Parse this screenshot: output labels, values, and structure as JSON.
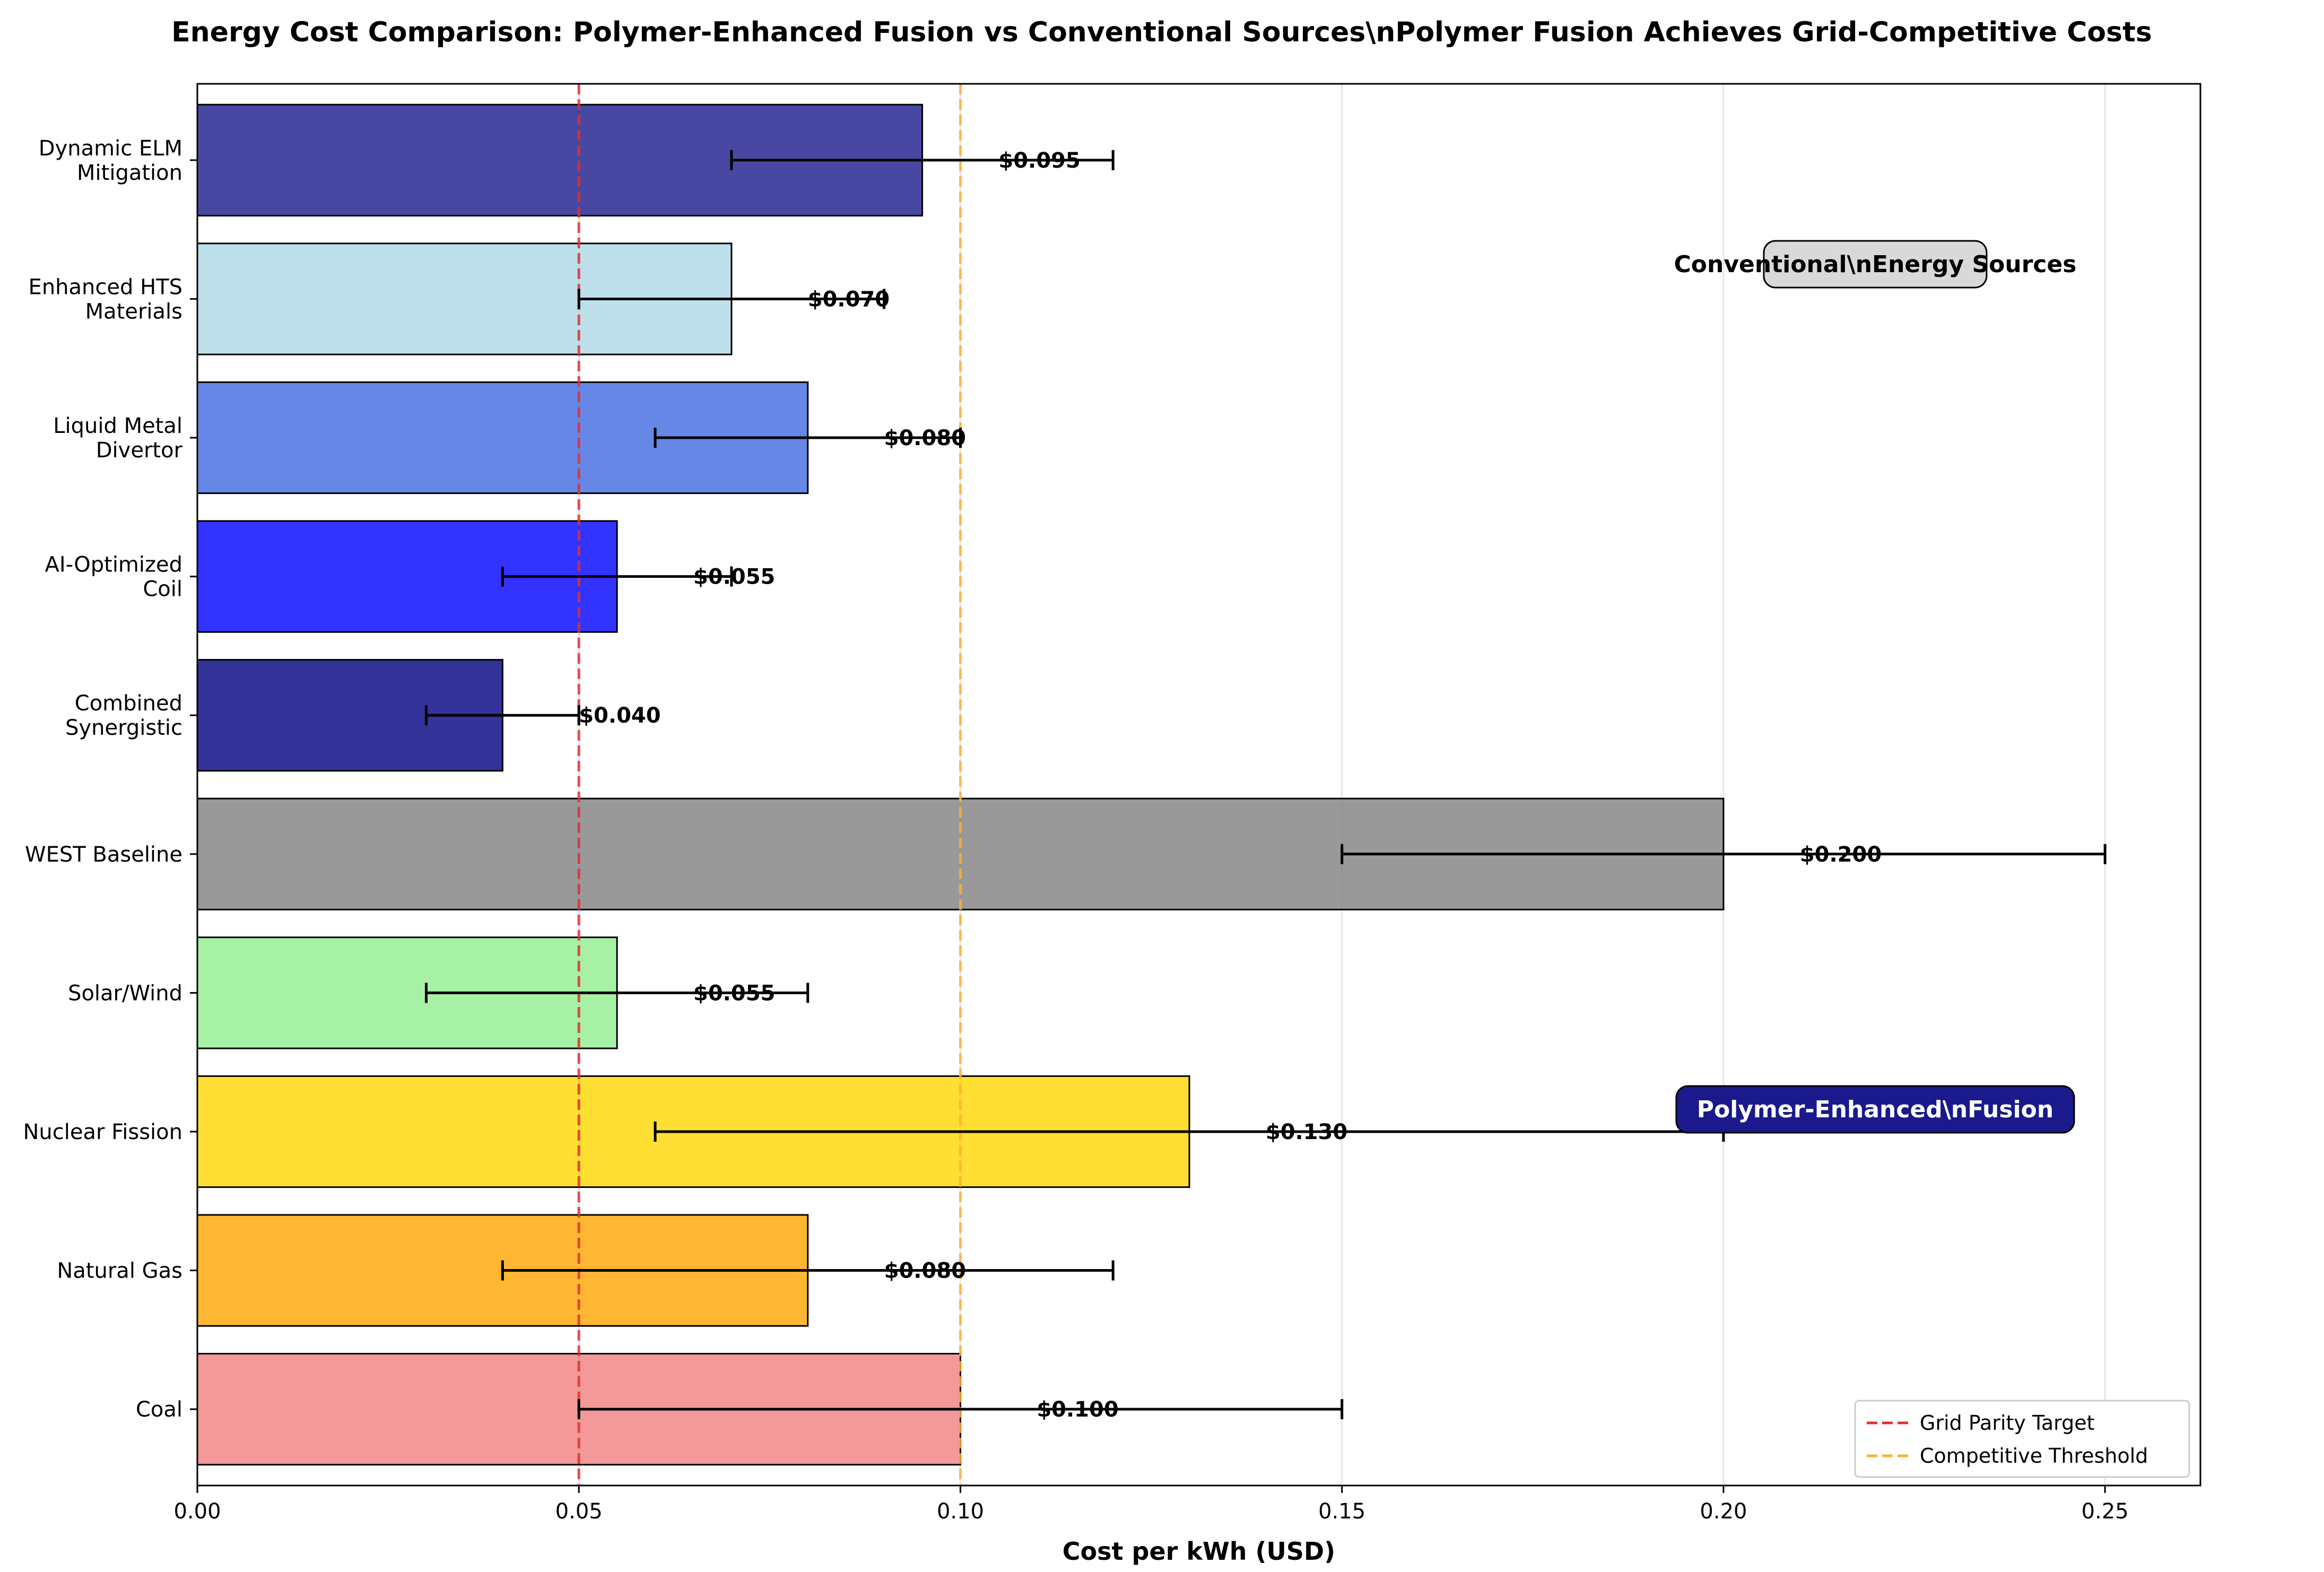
{
  "chart_data": {
    "type": "bar",
    "orientation": "horizontal",
    "title": "Energy Cost Comparison: Polymer-Enhanced Fusion vs Conventional Sources\\nPolymer Fusion Achieves Grid-Competitive Costs",
    "xlabel": "Cost per kWh (USD)",
    "ylabel": "",
    "xlim": [
      0,
      0.2625
    ],
    "xticks": [
      "0.00",
      "0.05",
      "0.10",
      "0.15",
      "0.20",
      "0.25"
    ],
    "grid": "x",
    "categories": [
      [
        "Dynamic ELM",
        "Mitigation"
      ],
      [
        "Enhanced HTS",
        "Materials"
      ],
      [
        "Liquid Metal",
        "Divertor"
      ],
      [
        "AI-Optimized",
        "Coil"
      ],
      [
        "Combined",
        "Synergistic"
      ],
      [
        "WEST Baseline"
      ],
      [
        "Solar/Wind"
      ],
      [
        "Nuclear Fission"
      ],
      [
        "Natural Gas"
      ],
      [
        "Coal"
      ]
    ],
    "bars": [
      {
        "value": 0.095,
        "err_low": 0.07,
        "err_high": 0.12,
        "label": "$0.095",
        "color": "#1a1a8c"
      },
      {
        "value": 0.07,
        "err_low": 0.05,
        "err_high": 0.09,
        "label": "$0.070",
        "color": "#add8e6"
      },
      {
        "value": 0.08,
        "err_low": 0.06,
        "err_high": 0.1,
        "label": "$0.080",
        "color": "#4169e1"
      },
      {
        "value": 0.055,
        "err_low": 0.04,
        "err_high": 0.07,
        "label": "$0.055",
        "color": "#0000ff"
      },
      {
        "value": 0.04,
        "err_low": 0.03,
        "err_high": 0.05,
        "label": "$0.040",
        "color": "#000080"
      },
      {
        "value": 0.2,
        "err_low": 0.15,
        "err_high": 0.25,
        "label": "$0.200",
        "color": "#808080"
      },
      {
        "value": 0.055,
        "err_low": 0.03,
        "err_high": 0.08,
        "label": "$0.055",
        "color": "#90ee90"
      },
      {
        "value": 0.13,
        "err_low": 0.06,
        "err_high": 0.2,
        "label": "$0.130",
        "color": "#ffd700"
      },
      {
        "value": 0.08,
        "err_low": 0.04,
        "err_high": 0.12,
        "label": "$0.080",
        "color": "#ffa500"
      },
      {
        "value": 0.1,
        "err_low": 0.05,
        "err_high": 0.15,
        "label": "$0.100",
        "color": "#f08080"
      }
    ],
    "reference_lines": [
      {
        "x": 0.05,
        "label": "Grid Parity Target",
        "color": "#e03030"
      },
      {
        "x": 0.1,
        "label": "Competitive Threshold",
        "color": "#ffb030"
      }
    ],
    "annotations": [
      {
        "text": "Conventional\\nEnergy Sources",
        "bg": "#d9d9d9",
        "fg": "#000000"
      },
      {
        "text": "Polymer-Enhanced\\nFusion",
        "bg": "#1a1a8c",
        "fg": "#ffffff"
      }
    ],
    "legend_position": "bottom-right"
  }
}
